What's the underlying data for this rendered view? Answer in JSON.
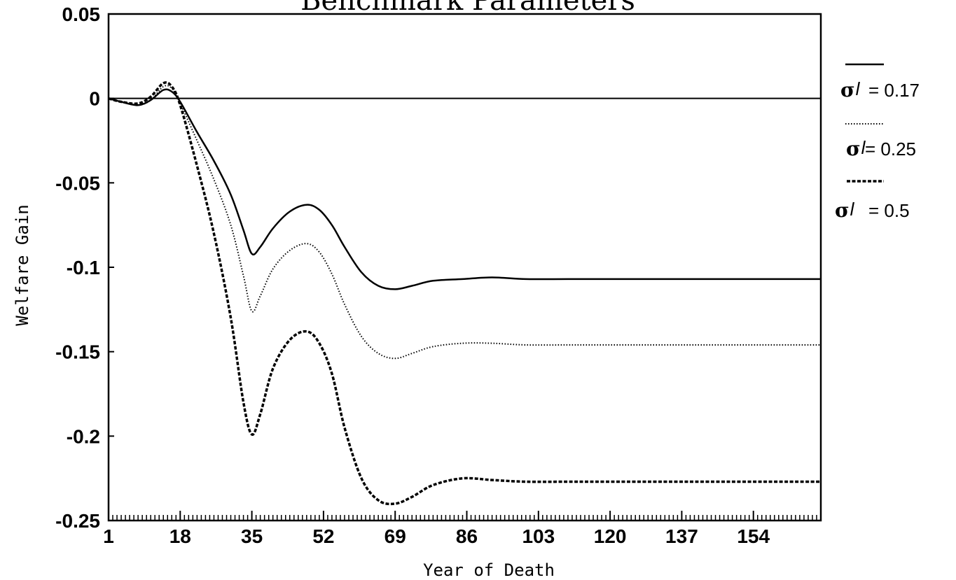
{
  "chart_data": {
    "type": "line",
    "title": "Benchmark Parameters",
    "xlabel": "Year of Death",
    "ylabel": "Welfare Gain",
    "xlim": [
      1,
      170
    ],
    "ylim": [
      -0.25,
      0.05
    ],
    "x_ticks": [
      "1",
      "18",
      "35",
      "52",
      "69",
      "86",
      "103",
      "120",
      "137",
      "154"
    ],
    "y_ticks": [
      "0.05",
      "0",
      "-0.05",
      "-0.1",
      "-0.15",
      "-0.2",
      "-0.25"
    ],
    "reference_line": 0,
    "legend_position": "right",
    "series": [
      {
        "name": "σ_l = 0.17",
        "style": "solid",
        "legend_symbol": "σ",
        "legend_sub": "l",
        "legend_value": "= 0.17",
        "x": [
          1,
          4,
          8,
          11,
          14,
          16,
          18,
          22,
          26,
          30,
          33,
          35,
          37,
          40,
          44,
          48,
          51,
          54,
          57,
          61,
          65,
          69,
          73,
          78,
          85,
          92,
          100,
          110,
          120,
          140,
          170
        ],
        "y": [
          0,
          -0.002,
          -0.004,
          -0.001,
          0.005,
          0.004,
          -0.002,
          -0.02,
          -0.037,
          -0.057,
          -0.078,
          -0.092,
          -0.088,
          -0.077,
          -0.067,
          -0.063,
          -0.066,
          -0.075,
          -0.088,
          -0.103,
          -0.111,
          -0.113,
          -0.111,
          -0.108,
          -0.107,
          -0.106,
          -0.107,
          -0.107,
          -0.107,
          -0.107,
          -0.107
        ]
      },
      {
        "name": "σ_l = 0.25",
        "style": "dotted",
        "legend_symbol": "σ",
        "legend_sub": "l",
        "legend_value": "= 0.25",
        "x": [
          1,
          4,
          8,
          11,
          14,
          16,
          18,
          22,
          26,
          30,
          33,
          35,
          37,
          40,
          44,
          48,
          51,
          54,
          57,
          61,
          65,
          69,
          73,
          78,
          85,
          92,
          100,
          110,
          120,
          140,
          170
        ],
        "y": [
          0,
          -0.002,
          -0.004,
          -0.001,
          0.007,
          0.006,
          -0.003,
          -0.025,
          -0.048,
          -0.075,
          -0.105,
          -0.126,
          -0.117,
          -0.101,
          -0.09,
          -0.086,
          -0.091,
          -0.104,
          -0.122,
          -0.141,
          -0.151,
          -0.154,
          -0.151,
          -0.147,
          -0.145,
          -0.145,
          -0.146,
          -0.146,
          -0.146,
          -0.146,
          -0.146
        ]
      },
      {
        "name": "σ_l = 0.5",
        "style": "dashed",
        "legend_symbol": "σ",
        "legend_sub": "l",
        "legend_value": "= 0.5",
        "x": [
          1,
          4,
          8,
          11,
          14,
          16,
          18,
          22,
          26,
          30,
          33,
          35,
          37,
          40,
          44,
          48,
          51,
          54,
          57,
          61,
          65,
          69,
          73,
          78,
          85,
          92,
          100,
          110,
          120,
          140,
          170
        ],
        "y": [
          0,
          -0.002,
          -0.003,
          0.001,
          0.009,
          0.007,
          -0.004,
          -0.04,
          -0.08,
          -0.13,
          -0.18,
          -0.199,
          -0.187,
          -0.16,
          -0.143,
          -0.138,
          -0.145,
          -0.163,
          -0.195,
          -0.225,
          -0.238,
          -0.24,
          -0.236,
          -0.229,
          -0.225,
          -0.226,
          -0.227,
          -0.227,
          -0.227,
          -0.227,
          -0.227
        ]
      }
    ]
  }
}
